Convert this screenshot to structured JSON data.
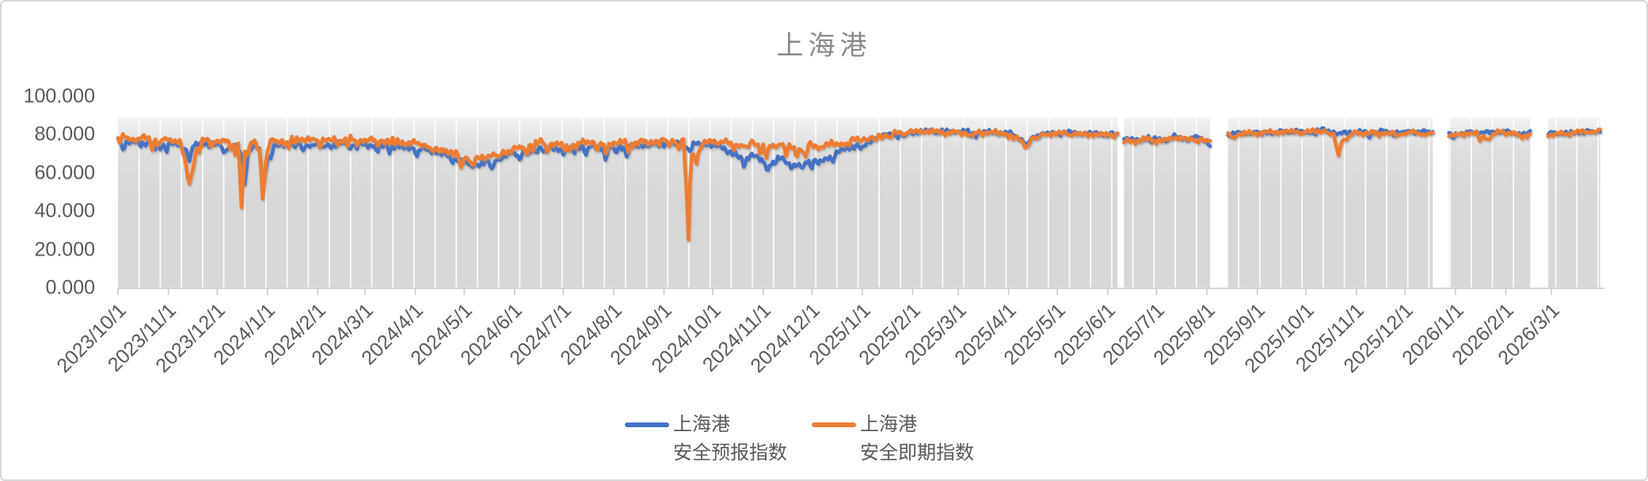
{
  "chart": {
    "title": "上海港",
    "y_axis": {
      "labels": [
        "100.000",
        "80.000",
        "60.000",
        "40.000",
        "20.000",
        "0.000"
      ],
      "values": [
        100,
        80,
        60,
        40,
        20,
        0
      ]
    },
    "x_axis": {
      "labels": [
        "2023/10/1",
        "2023/11/1",
        "2023/12/1",
        "2024/1/1",
        "2024/2/1",
        "2024/3/1",
        "2024/4/1",
        "2024/5/1",
        "2024/6/1",
        "2024/7/1",
        "2024/8/1",
        "2024/9/1",
        "2024/10/1",
        "2024/11/1",
        "2024/12/1",
        "2025/1/1",
        "2025/2/1",
        "2025/3/1",
        "2025/4/1",
        "2025/5/1",
        "2025/6/1",
        "2025/7/1",
        "2025/8/1",
        "2025/9/1",
        "2025/10/1",
        "2025/11/1",
        "2025/12/1",
        "2026/1/1",
        "2026/2/1",
        "2026/3/1"
      ]
    },
    "legend": [
      {
        "line1": "上海港",
        "line2": "安全预报指数",
        "color": "#4472C4"
      },
      {
        "line1": "上海港",
        "line2": "安全即期指数",
        "color": "#ED7D31"
      }
    ]
  },
  "chart_data": {
    "type": "line",
    "title": "上海港",
    "ylim": [
      0,
      100
    ],
    "y_step": 20,
    "x_start_date": "2023/10/1",
    "x_tick_labels": [
      "2023/10/1",
      "2023/11/1",
      "2023/12/1",
      "2024/1/1",
      "2024/2/1",
      "2024/3/1",
      "2024/4/1",
      "2024/5/1",
      "2024/6/1",
      "2024/7/1",
      "2024/8/1",
      "2024/9/1",
      "2024/10/1",
      "2024/11/1",
      "2024/12/1",
      "2025/1/1",
      "2025/2/1",
      "2025/3/1",
      "2025/4/1",
      "2025/5/1",
      "2025/6/1",
      "2025/7/1",
      "2025/8/1",
      "2025/9/1",
      "2025/10/1",
      "2025/11/1",
      "2025/12/1",
      "2026/1/1",
      "2026/2/1",
      "2026/3/1"
    ],
    "series": [
      {
        "name": "上海港 安全预报指数",
        "color": "#4472C4"
      },
      {
        "name": "上海港 安全即期指数",
        "color": "#ED7D31"
      }
    ],
    "segments_days": [
      [
        0,
        615
      ],
      [
        619,
        672
      ],
      [
        683,
        809
      ],
      [
        819,
        869
      ],
      [
        880,
        912
      ]
    ],
    "keyframes_day_blue_orange": [
      [
        0,
        78,
        79.5
      ],
      [
        4,
        76.5,
        79
      ],
      [
        8,
        76,
        78
      ],
      [
        14,
        75.5,
        78
      ],
      [
        20,
        76,
        78.5
      ],
      [
        26,
        75,
        77.5
      ],
      [
        32,
        75.5,
        77.5
      ],
      [
        38,
        74.5,
        77
      ],
      [
        41,
        73,
        68
      ],
      [
        43,
        72.5,
        57
      ],
      [
        44,
        72,
        54.5
      ],
      [
        46,
        73.5,
        62
      ],
      [
        48,
        74.5,
        72
      ],
      [
        52,
        75.5,
        77
      ],
      [
        58,
        75,
        77.5
      ],
      [
        64,
        74.5,
        77
      ],
      [
        70,
        75,
        77.5
      ],
      [
        74,
        74,
        75.5
      ],
      [
        76,
        71,
        47.5
      ],
      [
        77,
        66,
        58
      ],
      [
        78,
        54.5,
        70
      ],
      [
        80,
        71,
        75
      ],
      [
        84,
        75,
        77
      ],
      [
        87,
        72,
        72
      ],
      [
        89,
        52,
        50.5
      ],
      [
        90,
        60,
        58
      ],
      [
        92,
        70,
        72
      ],
      [
        95,
        75,
        77.5
      ],
      [
        100,
        74.5,
        77
      ],
      [
        106,
        75.5,
        77.5
      ],
      [
        112,
        75,
        78
      ],
      [
        118,
        74.5,
        77
      ],
      [
        124,
        75.5,
        78
      ],
      [
        130,
        74.5,
        77
      ],
      [
        136,
        75,
        77.5
      ],
      [
        142,
        75.5,
        78
      ],
      [
        148,
        75,
        77.5
      ],
      [
        154,
        74.5,
        77
      ],
      [
        160,
        75,
        77.5
      ],
      [
        166,
        74.5,
        77
      ],
      [
        172,
        74.5,
        76.5
      ],
      [
        178,
        74,
        76
      ],
      [
        184,
        73,
        75.5
      ],
      [
        192,
        72,
        74.5
      ],
      [
        200,
        70,
        72.5
      ],
      [
        206,
        68,
        70.5
      ],
      [
        212,
        66,
        68.5
      ],
      [
        218,
        64.5,
        67.5
      ],
      [
        224,
        65,
        68
      ],
      [
        230,
        66.5,
        69.5
      ],
      [
        236,
        68,
        70.5
      ],
      [
        242,
        70,
        72
      ],
      [
        248,
        71,
        73.5
      ],
      [
        254,
        72.5,
        75
      ],
      [
        260,
        73.5,
        76
      ],
      [
        268,
        73,
        75.5
      ],
      [
        276,
        72.5,
        74.5
      ],
      [
        284,
        74,
        76
      ],
      [
        292,
        74,
        76.5
      ],
      [
        300,
        73,
        75
      ],
      [
        308,
        74,
        76
      ],
      [
        316,
        73.5,
        75.5
      ],
      [
        324,
        74.5,
        76.5
      ],
      [
        332,
        75,
        77
      ],
      [
        340,
        75.5,
        77.5
      ],
      [
        348,
        75,
        77
      ],
      [
        350,
        74,
        52
      ],
      [
        351,
        72.5,
        26.5
      ],
      [
        352,
        74,
        55
      ],
      [
        353,
        75,
        70
      ],
      [
        356,
        75,
        68.5
      ],
      [
        360,
        75.5,
        76
      ],
      [
        366,
        74.5,
        76.5
      ],
      [
        372,
        73.5,
        76
      ],
      [
        378,
        70.5,
        75.5
      ],
      [
        384,
        67.5,
        74.5
      ],
      [
        390,
        69.5,
        76
      ],
      [
        396,
        66.5,
        74.5
      ],
      [
        402,
        64.5,
        73.5
      ],
      [
        408,
        68,
        75.5
      ],
      [
        414,
        64,
        73
      ],
      [
        420,
        63.5,
        72.5
      ],
      [
        426,
        67,
        74.5
      ],
      [
        432,
        65,
        73.5
      ],
      [
        438,
        68.5,
        75
      ],
      [
        444,
        71,
        75.5
      ],
      [
        450,
        73.5,
        76.5
      ],
      [
        455,
        74.5,
        77.5
      ],
      [
        458,
        72,
        78
      ],
      [
        461,
        76,
        79
      ],
      [
        466,
        78.5,
        79.5
      ],
      [
        472,
        80,
        80.5
      ],
      [
        480,
        81,
        81
      ],
      [
        490,
        81.5,
        81.5
      ],
      [
        500,
        82,
        82
      ],
      [
        510,
        81.5,
        81
      ],
      [
        520,
        82,
        81.5
      ],
      [
        530,
        81,
        81
      ],
      [
        540,
        81.5,
        81.5
      ],
      [
        550,
        80.5,
        80
      ],
      [
        556,
        78,
        76.5
      ],
      [
        559,
        74.5,
        73.5
      ],
      [
        562,
        78,
        78
      ],
      [
        568,
        80.5,
        80
      ],
      [
        576,
        81,
        80.5
      ],
      [
        584,
        81.5,
        81
      ],
      [
        592,
        80.5,
        80
      ],
      [
        600,
        81,
        80.5
      ],
      [
        608,
        80.5,
        80
      ],
      [
        615,
        80.5,
        80.5
      ],
      [
        619,
        78.5,
        78
      ],
      [
        626,
        77,
        76.5
      ],
      [
        634,
        78.5,
        78
      ],
      [
        642,
        77.5,
        77
      ],
      [
        650,
        79,
        78.5
      ],
      [
        658,
        78,
        77.5
      ],
      [
        664,
        79,
        78
      ],
      [
        669,
        77,
        77.5
      ],
      [
        672,
        74.5,
        77
      ],
      [
        683,
        80,
        79.5
      ],
      [
        692,
        81,
        80.5
      ],
      [
        702,
        81.5,
        81
      ],
      [
        712,
        81,
        81.5
      ],
      [
        722,
        82,
        82
      ],
      [
        732,
        81.5,
        81.5
      ],
      [
        742,
        82.5,
        82.5
      ],
      [
        748,
        81.5,
        80
      ],
      [
        751,
        80,
        69.5
      ],
      [
        753,
        81,
        77
      ],
      [
        758,
        81.5,
        81
      ],
      [
        766,
        81.5,
        81
      ],
      [
        774,
        82,
        81.5
      ],
      [
        782,
        81.5,
        81
      ],
      [
        790,
        81,
        80.5
      ],
      [
        797,
        82,
        81.5
      ],
      [
        803,
        81.5,
        81
      ],
      [
        809,
        81.5,
        81
      ],
      [
        819,
        80,
        79.5
      ],
      [
        827,
        81,
        80.5
      ],
      [
        835,
        81.5,
        81
      ],
      [
        843,
        81,
        78
      ],
      [
        847,
        81.5,
        80.5
      ],
      [
        851,
        82,
        81.5
      ],
      [
        859,
        81,
        80.5
      ],
      [
        864,
        80.5,
        78.5
      ],
      [
        869,
        81,
        80.5
      ],
      [
        880,
        80.5,
        80
      ],
      [
        886,
        81,
        80.5
      ],
      [
        892,
        81.5,
        81
      ],
      [
        898,
        81,
        81.5
      ],
      [
        905,
        82,
        81.5
      ],
      [
        912,
        82,
        82.5
      ]
    ],
    "noise": {
      "seed_blue": 11,
      "seed_orange": 27,
      "wiggle_amp": 1.0,
      "dip_prob_early": 0.12,
      "dip_prob_late": 0.06,
      "late_era_start_day": 466
    }
  },
  "style": {
    "series_blue": "#4472C4",
    "series_orange": "#ED7D31",
    "area_top": "#f3f3f3",
    "area_mid": "#dedede",
    "area_bottom": "#d7d7d7",
    "grid_white": "#ffffff",
    "axis_line": "#c8c8c8",
    "label_color": "#595959",
    "title_color": "#898989",
    "border_color": "#d9d9d9"
  }
}
